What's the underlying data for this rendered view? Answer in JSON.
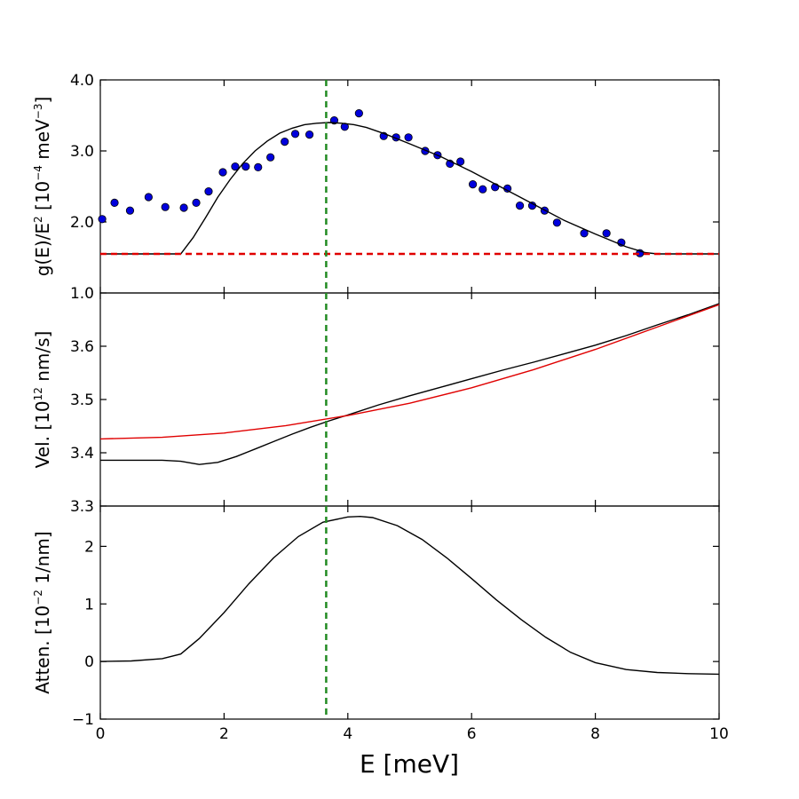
{
  "chart_data": {
    "type": "line",
    "shared_x": {
      "label": "E [meV]",
      "range": [
        0,
        10
      ],
      "ticks": [
        0,
        2,
        4,
        6,
        8,
        10
      ],
      "tick_labels": [
        "0",
        "2",
        "4",
        "6",
        "8",
        "10"
      ]
    },
    "marker_line": {
      "x": 3.65,
      "color": "#228B22",
      "style": "dashed"
    },
    "panels": [
      {
        "id": "dos",
        "ylabel": {
          "text": "g(E)/E",
          "sup1": "2",
          "text2": " [10",
          "sup2": "−4",
          "text3": " meV",
          "sup3": "−3",
          "text4": "]"
        },
        "ylim": [
          1.0,
          4.0
        ],
        "yticks": [
          1.0,
          2.0,
          3.0,
          4.0
        ],
        "ytick_labels": [
          "1.0",
          "2.0",
          "3.0",
          "4.0"
        ],
        "series": [
          {
            "name": "measured",
            "kind": "scatter",
            "color": "#0000dd",
            "x": [
              0.03,
              0.23,
              0.48,
              0.78,
              1.05,
              1.35,
              1.55,
              1.75,
              1.98,
              2.18,
              2.35,
              2.55,
              2.75,
              2.98,
              3.15,
              3.38,
              3.78,
              3.95,
              4.18,
              4.58,
              4.78,
              4.98,
              5.25,
              5.45,
              5.65,
              5.82,
              6.02,
              6.18,
              6.38,
              6.58,
              6.78,
              6.98,
              7.18,
              7.38,
              7.82,
              8.18,
              8.42,
              8.72
            ],
            "y": [
              2.04,
              2.27,
              2.16,
              2.35,
              2.21,
              2.2,
              2.27,
              2.43,
              2.7,
              2.78,
              2.78,
              2.77,
              2.91,
              3.13,
              3.24,
              3.23,
              3.43,
              3.34,
              3.53,
              3.21,
              3.19,
              3.19,
              3.0,
              2.94,
              2.82,
              2.85,
              2.53,
              2.46,
              2.49,
              2.47,
              2.23,
              2.23,
              2.16,
              1.99,
              1.84,
              1.84,
              1.71,
              1.56
            ]
          },
          {
            "name": "fit",
            "kind": "line",
            "color": "#000000",
            "x": [
              0,
              1.3,
              1.5,
              1.7,
              1.9,
              2.1,
              2.3,
              2.5,
              2.7,
              2.9,
              3.1,
              3.3,
              3.5,
              3.7,
              3.9,
              4.1,
              4.3,
              4.6,
              5.0,
              5.5,
              6.0,
              6.5,
              7.0,
              7.5,
              8.0,
              8.5,
              8.8,
              9.0,
              10
            ],
            "y": [
              1.55,
              1.55,
              1.78,
              2.06,
              2.35,
              2.6,
              2.82,
              3.0,
              3.14,
              3.25,
              3.32,
              3.37,
              3.39,
              3.4,
              3.39,
              3.37,
              3.33,
              3.24,
              3.1,
              2.92,
              2.71,
              2.48,
              2.25,
              2.02,
              1.83,
              1.65,
              1.57,
              1.55,
              1.55
            ]
          },
          {
            "name": "baseline",
            "kind": "line",
            "color": "#e00000",
            "dashed": true,
            "x": [
              0,
              10
            ],
            "y": [
              1.55,
              1.55
            ]
          }
        ]
      },
      {
        "id": "velocity",
        "ylabel": {
          "text": "Vel. [10",
          "sup1": "12",
          "text2": " nm/s]"
        },
        "ylim": [
          3.3,
          3.7
        ],
        "yticks": [
          3.3,
          3.4,
          3.5,
          3.6
        ],
        "ytick_labels": [
          "3.3",
          "3.4",
          "3.5",
          "3.6"
        ],
        "series": [
          {
            "name": "velocity",
            "kind": "line",
            "color": "#000000",
            "x": [
              0,
              1.0,
              1.3,
              1.6,
              1.9,
              2.2,
              2.5,
              2.8,
              3.1,
              3.4,
              3.7,
              4.0,
              4.5,
              5.0,
              5.5,
              6.0,
              6.5,
              7.0,
              7.5,
              8.0,
              8.5,
              9.0,
              9.5,
              10
            ],
            "y": [
              3.386,
              3.386,
              3.384,
              3.378,
              3.382,
              3.393,
              3.407,
              3.421,
              3.435,
              3.448,
              3.46,
              3.471,
              3.49,
              3.507,
              3.523,
              3.539,
              3.555,
              3.57,
              3.586,
              3.602,
              3.62,
              3.64,
              3.659,
              3.68
            ]
          },
          {
            "name": "reference",
            "kind": "line",
            "color": "#e00000",
            "x": [
              0,
              1,
              2,
              3,
              4,
              5,
              6,
              7,
              8,
              9,
              10
            ],
            "y": [
              3.426,
              3.429,
              3.437,
              3.451,
              3.47,
              3.493,
              3.522,
              3.556,
              3.594,
              3.636,
              3.678
            ]
          }
        ]
      },
      {
        "id": "attenuation",
        "ylabel": {
          "text": "Atten. [10",
          "sup1": "−2",
          "text2": " 1/nm]"
        },
        "ylim": [
          -1,
          2.7
        ],
        "yticks": [
          -1,
          0,
          1,
          2
        ],
        "ytick_labels": [
          "−1",
          "0",
          "1",
          "2"
        ],
        "series": [
          {
            "name": "attenuation",
            "kind": "line",
            "color": "#000000",
            "x": [
              0,
              0.5,
              1.0,
              1.3,
              1.6,
              2.0,
              2.4,
              2.8,
              3.2,
              3.6,
              4.0,
              4.2,
              4.4,
              4.8,
              5.2,
              5.6,
              6.0,
              6.4,
              6.8,
              7.2,
              7.6,
              8.0,
              8.5,
              9.0,
              9.5,
              10
            ],
            "y": [
              0.0,
              0.01,
              0.05,
              0.13,
              0.4,
              0.85,
              1.35,
              1.8,
              2.17,
              2.42,
              2.51,
              2.52,
              2.5,
              2.36,
              2.12,
              1.8,
              1.44,
              1.07,
              0.73,
              0.42,
              0.16,
              -0.02,
              -0.14,
              -0.19,
              -0.21,
              -0.22
            ]
          }
        ]
      }
    ]
  }
}
